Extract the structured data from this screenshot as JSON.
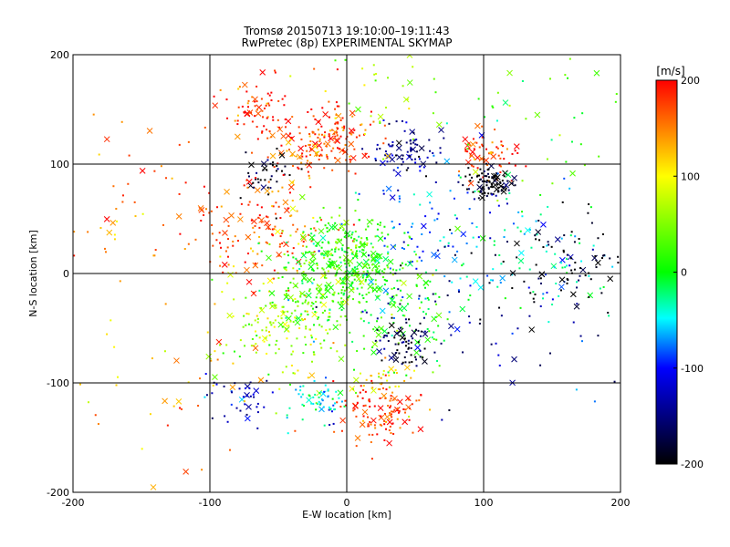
{
  "chart_data": {
    "type": "scatter",
    "title": "Tromsø 20150713 19:10:00–19:11:43",
    "subtitle": "RwPretec (8p) EXPERIMENTAL SKYMAP",
    "xlabel": "E-W location [km]",
    "ylabel": "N-S location [km]",
    "xlim": [
      -200,
      200
    ],
    "ylim": [
      -200,
      200
    ],
    "x_ticks": [
      -200,
      -100,
      0,
      100,
      200
    ],
    "y_ticks": [
      -200,
      -100,
      0,
      100,
      200
    ],
    "grid": true,
    "marker_types": [
      "dot",
      "cross"
    ],
    "colorbar": {
      "label": "[m/s]",
      "range": [
        -200,
        200
      ],
      "ticks": [
        200,
        100,
        0,
        -100,
        -200
      ],
      "colors": [
        "#ff0000",
        "#ffff00",
        "#00ff00",
        "#00ffff",
        "#0000ff",
        "#000000"
      ]
    },
    "clusters": [
      {
        "x": -65,
        "y": 145,
        "spread": 14,
        "velocity": 190,
        "n": 80
      },
      {
        "x": -10,
        "y": 125,
        "spread": 15,
        "velocity": 180,
        "n": 120
      },
      {
        "x": -30,
        "y": 110,
        "spread": 12,
        "velocity": 160,
        "n": 50
      },
      {
        "x": 45,
        "y": 110,
        "spread": 12,
        "velocity": -150,
        "n": 80
      },
      {
        "x": 102,
        "y": 110,
        "spread": 12,
        "velocity": 180,
        "n": 70
      },
      {
        "x": 104,
        "y": 82,
        "spread": 8,
        "velocity": -200,
        "n": 90
      },
      {
        "x": -60,
        "y": 90,
        "spread": 10,
        "velocity": -190,
        "n": 40
      },
      {
        "x": -60,
        "y": 40,
        "spread": 25,
        "velocity": 170,
        "n": 150
      },
      {
        "x": 0,
        "y": 10,
        "spread": 22,
        "velocity": 20,
        "n": 400
      },
      {
        "x": -45,
        "y": -45,
        "spread": 25,
        "velocity": 60,
        "n": 200
      },
      {
        "x": 30,
        "y": -30,
        "spread": 30,
        "velocity": 10,
        "n": 150
      },
      {
        "x": 40,
        "y": -65,
        "spread": 12,
        "velocity": -180,
        "n": 70
      },
      {
        "x": 25,
        "y": -125,
        "spread": 15,
        "velocity": 180,
        "n": 120
      },
      {
        "x": 25,
        "y": -95,
        "spread": 10,
        "velocity": 110,
        "n": 30
      },
      {
        "x": -20,
        "y": -120,
        "spread": 10,
        "velocity": -40,
        "n": 60
      },
      {
        "x": -80,
        "y": -115,
        "spread": 12,
        "velocity": -130,
        "n": 40
      },
      {
        "x": 135,
        "y": 15,
        "spread": 30,
        "velocity": -40,
        "n": 100
      },
      {
        "x": 160,
        "y": 5,
        "spread": 25,
        "velocity": -200,
        "n": 80
      },
      {
        "x": 55,
        "y": 40,
        "spread": 30,
        "velocity": -80,
        "n": 80
      },
      {
        "x": 20,
        "y": 170,
        "spread": 25,
        "velocity": 60,
        "n": 40
      },
      {
        "x": -150,
        "y": 60,
        "spread": 45,
        "velocity": 150,
        "n": 60
      },
      {
        "x": 140,
        "y": 140,
        "spread": 40,
        "velocity": 20,
        "n": 50
      },
      {
        "x": -130,
        "y": -100,
        "spread": 40,
        "velocity": 130,
        "n": 40
      },
      {
        "x": 100,
        "y": -60,
        "spread": 50,
        "velocity": -150,
        "n": 60
      }
    ]
  }
}
